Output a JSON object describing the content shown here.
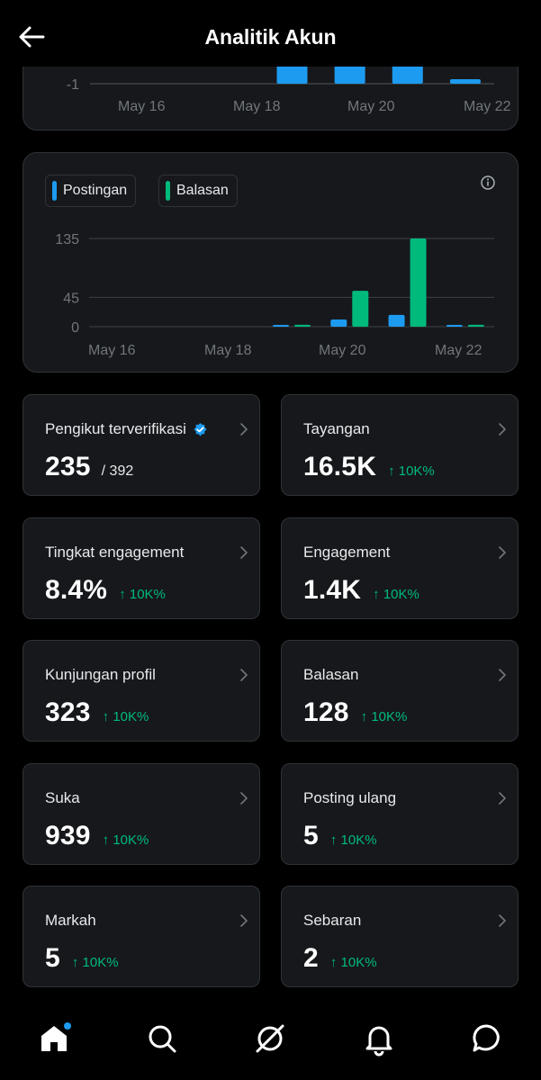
{
  "header": {
    "title": "Analitik Akun"
  },
  "chart_data": [
    {
      "type": "bar",
      "partially_visible": true,
      "categories": [
        "May 16",
        "May 17",
        "May 18",
        "May 19",
        "May 20",
        "May 21",
        "May 22"
      ],
      "x_tick_labels": [
        "May 16",
        "May 18",
        "May 20",
        "May 22"
      ],
      "y_tick_labels_visible": [
        "-1"
      ],
      "series": [
        {
          "values": [
            0,
            0,
            0,
            1,
            1,
            1,
            0.2
          ]
        }
      ],
      "colors": [
        "#1d9bf0"
      ],
      "grid": true
    },
    {
      "type": "bar",
      "categories": [
        "May 16",
        "May 17",
        "May 18",
        "May 19",
        "May 20",
        "May 21",
        "May 22"
      ],
      "x_tick_labels": [
        "May 16",
        "May 18",
        "May 20",
        "May 22"
      ],
      "y_tick_labels": [
        "135",
        "45",
        "0"
      ],
      "y_ticks": [
        135,
        45,
        0
      ],
      "ylim": [
        0,
        135
      ],
      "series": [
        {
          "name": "Postingan",
          "color": "#1d9bf0",
          "values": [
            0,
            0,
            0,
            1,
            11,
            18,
            2
          ]
        },
        {
          "name": "Balasan",
          "color": "#00ba7c",
          "values": [
            0,
            0,
            0,
            3,
            55,
            135,
            3
          ]
        }
      ],
      "legend": "top-left",
      "grid": true
    }
  ],
  "stats": [
    {
      "label": "Pengikut terverifikasi",
      "value": "235",
      "total": "/ 392",
      "verified": true
    },
    {
      "label": "Tayangan",
      "value": "16.5K",
      "change": "↑ 10K%"
    },
    {
      "label": "Tingkat engagement",
      "value": "8.4%",
      "change": "↑ 10K%"
    },
    {
      "label": "Engagement",
      "value": "1.4K",
      "change": "↑ 10K%"
    },
    {
      "label": "Kunjungan profil",
      "value": "323",
      "change": "↑ 10K%"
    },
    {
      "label": "Balasan",
      "value": "128",
      "change": "↑ 10K%"
    },
    {
      "label": "Suka",
      "value": "939",
      "change": "↑ 10K%"
    },
    {
      "label": "Posting ulang",
      "value": "5",
      "change": "↑ 10K%"
    },
    {
      "label": "Markah",
      "value": "5",
      "change": "↑ 10K%"
    },
    {
      "label": "Sebaran",
      "value": "2",
      "change": "↑ 10K%"
    }
  ],
  "nav": {
    "items": [
      "home-icon",
      "search-icon",
      "grok-icon",
      "notifications-icon",
      "messages-icon"
    ],
    "home_has_badge": true
  },
  "colors": {
    "background": "#000000",
    "card": "#16181c",
    "border": "#2f3336",
    "accent_blue": "#1d9bf0",
    "accent_green": "#00ba7c"
  }
}
